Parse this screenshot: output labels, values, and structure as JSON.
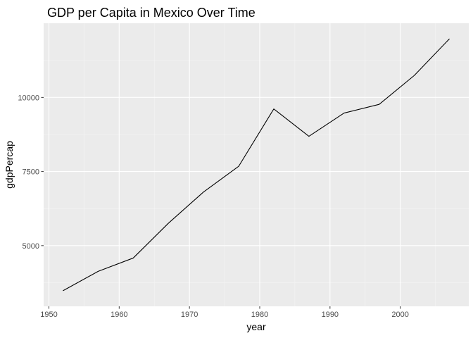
{
  "chart_data": {
    "type": "line",
    "title": "GDP per Capita in Mexico Over Time",
    "xlabel": "year",
    "ylabel": "gdpPercap",
    "x": [
      1952,
      1957,
      1962,
      1967,
      1972,
      1977,
      1982,
      1987,
      1992,
      1997,
      2002,
      2007
    ],
    "series": [
      {
        "values": [
          3478,
          4132,
          4582,
          5755,
          6809,
          7675,
          9611,
          8688,
          9472,
          9767,
          10742,
          11978
        ]
      }
    ],
    "xlim": [
      1949.25,
      2009.75
    ],
    "ylim": [
      2953,
      12503
    ],
    "x_ticks": [
      1950,
      1960,
      1970,
      1980,
      1990,
      2000
    ],
    "x_tick_labels": [
      "1950",
      "1960",
      "1970",
      "1980",
      "1990",
      "2000"
    ],
    "y_ticks": [
      5000,
      7500,
      10000
    ],
    "y_tick_labels": [
      "5000",
      "7500",
      "10000"
    ],
    "grid": true,
    "legend": "none",
    "colors": {
      "panel_background": "#ebebeb",
      "grid_major": "#ffffff",
      "grid_minor": "#f5f5f5",
      "line": "#000000",
      "tick_text": "#4d4d4d",
      "tick_mark": "#333333"
    }
  }
}
